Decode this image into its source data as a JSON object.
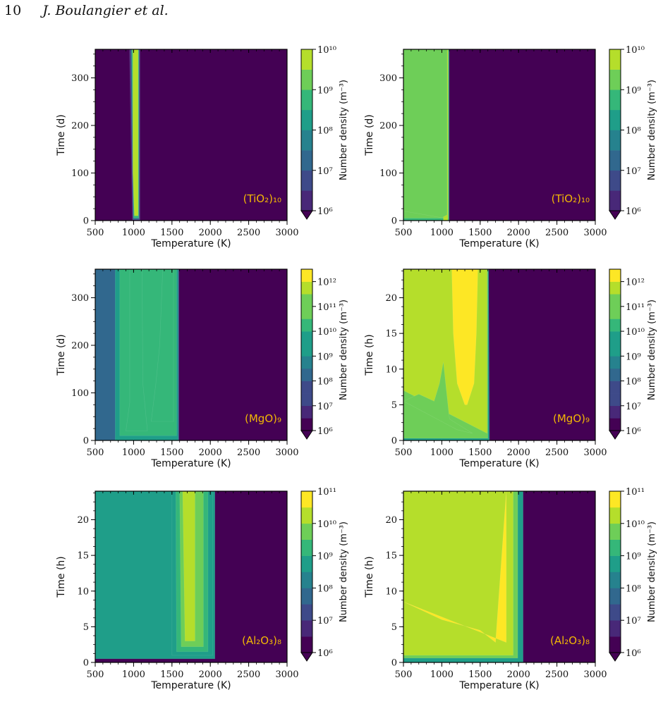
{
  "page_header": {
    "page_number": "10",
    "running_author": "J. Boulangier et al."
  },
  "colors": {
    "viridis": [
      "#440154",
      "#482878",
      "#3e4a89",
      "#31688e",
      "#26828e",
      "#1f9e89",
      "#35b779",
      "#6ece58",
      "#b5de2b",
      "#fde725"
    ],
    "species_label": "#f2b705",
    "axis": "#000000"
  },
  "chart_data": [
    {
      "id": "tio2-days-a",
      "type": "contour",
      "species": "(TiO₂)₁₀",
      "xlabel": "Temperature (K)",
      "ylabel": "Time (d)",
      "xlim": [
        500,
        3000
      ],
      "ylim": [
        0,
        360
      ],
      "xticks": [
        500,
        1000,
        1500,
        2000,
        2500,
        3000
      ],
      "yticks": [
        0,
        100,
        200,
        300
      ],
      "colorbar": {
        "label": "Number density (m⁻³)",
        "log_min": 6,
        "log_max": 10,
        "ticks": [
          6,
          7,
          8,
          9,
          10
        ],
        "tick_labels": [
          "10⁶",
          "10⁷",
          "10⁸",
          "10⁹",
          "10¹⁰"
        ],
        "extend": "min"
      },
      "regions": [
        {
          "level": 6.5,
          "x_left": [
            [
              0,
              985
            ],
            [
              360,
              945
            ]
          ],
          "x_right": [
            [
              0,
              1085
            ],
            [
              360,
              1085
            ]
          ]
        },
        {
          "level": 7.5,
          "x_left": [
            [
              2,
              992
            ],
            [
              360,
              960
            ]
          ],
          "x_right": [
            [
              2,
              1075
            ],
            [
              360,
              1075
            ]
          ]
        },
        {
          "level": 8.5,
          "x_left": [
            [
              5,
              1000
            ],
            [
              360,
              975
            ]
          ],
          "x_right": [
            [
              5,
              1068
            ],
            [
              360,
              1068
            ]
          ]
        },
        {
          "level": 9.5,
          "x_left": [
            [
              10,
              1010
            ],
            [
              100,
              990
            ],
            [
              360,
              990
            ]
          ],
          "x_right": [
            [
              10,
              1060
            ],
            [
              360,
              1060
            ]
          ]
        }
      ]
    },
    {
      "id": "tio2-days-b",
      "type": "contour",
      "species": "(TiO₂)₁₀",
      "xlabel": "Temperature (K)",
      "ylabel": "Time (d)",
      "xlim": [
        500,
        3000
      ],
      "ylim": [
        0,
        360
      ],
      "xticks": [
        500,
        1000,
        1500,
        2000,
        2500,
        3000
      ],
      "yticks": [
        0,
        100,
        200,
        300
      ],
      "colorbar": {
        "label": "Number density (m⁻³)",
        "log_min": 6,
        "log_max": 10,
        "ticks": [
          6,
          7,
          8,
          9,
          10
        ],
        "tick_labels": [
          "10⁶",
          "10⁷",
          "10⁸",
          "10⁹",
          "10¹⁰"
        ],
        "extend": "min"
      },
      "regions": [
        {
          "level": 8.5,
          "x_left": [
            [
              0,
              500
            ],
            [
              360,
              500
            ]
          ],
          "x_right": [
            [
              0,
              1095
            ],
            [
              360,
              1095
            ]
          ]
        },
        {
          "level": 9.3,
          "x_left": [
            [
              5,
              500
            ],
            [
              360,
              500
            ]
          ],
          "x_right": [
            [
              5,
              1085
            ],
            [
              360,
              1085
            ]
          ]
        },
        {
          "level": 9.5,
          "x_left": [
            [
              0,
              1020
            ],
            [
              360,
              1020
            ]
          ],
          "x_right": [
            [
              0,
              1080
            ],
            [
              360,
              1080
            ]
          ]
        },
        {
          "level": 8.9,
          "x_left": [
            [
              20,
              500
            ],
            [
              360,
              500
            ]
          ],
          "x_right": [
            [
              6,
              1000
            ],
            [
              12,
              1070
            ],
            [
              360,
              1070
            ]
          ]
        }
      ]
    },
    {
      "id": "mgo-days",
      "type": "contour",
      "species": "(MgO)₉",
      "xlabel": "Temperature (K)",
      "ylabel": "Time (d)",
      "xlim": [
        500,
        3000
      ],
      "ylim": [
        0,
        360
      ],
      "xticks": [
        500,
        1000,
        1500,
        2000,
        2500,
        3000
      ],
      "yticks": [
        0,
        100,
        200,
        300
      ],
      "colorbar": {
        "label": "Number density (m⁻³)",
        "log_min": 6,
        "log_max": 12.5,
        "ticks": [
          6,
          7,
          8,
          9,
          10,
          11,
          12
        ],
        "tick_labels": [
          "10⁶",
          "10⁷",
          "10⁸",
          "10⁹",
          "10¹⁰",
          "10¹¹",
          "10¹²"
        ],
        "extend": "min"
      },
      "regions": [
        {
          "level": 8.5,
          "x_left": [
            [
              0,
              500
            ],
            [
              360,
              500
            ]
          ],
          "x_right": [
            [
              0,
              1590
            ],
            [
              360,
              1590
            ]
          ]
        },
        {
          "level": 9.5,
          "x_left": [
            [
              0,
              760
            ],
            [
              360,
              760
            ]
          ],
          "x_right": [
            [
              0,
              1580
            ],
            [
              360,
              1580
            ]
          ]
        },
        {
          "level": 10.0,
          "x_left": [
            [
              10,
              820
            ],
            [
              360,
              820
            ]
          ],
          "x_right": [
            [
              10,
              1560
            ],
            [
              360,
              1560
            ]
          ]
        },
        {
          "level": 10.5,
          "x_left": [
            [
              20,
              900
            ],
            [
              80,
              950
            ],
            [
              360,
              950
            ]
          ],
          "x_right": [
            [
              20,
              1180
            ],
            [
              120,
              1120
            ],
            [
              360,
              1110
            ]
          ]
        },
        {
          "level": 10.5,
          "x_left": [
            [
              40,
              1230
            ],
            [
              120,
              1290
            ],
            [
              200,
              1340
            ],
            [
              360,
              1380
            ]
          ],
          "x_right": [
            [
              40,
              1520
            ],
            [
              360,
              1520
            ]
          ]
        }
      ]
    },
    {
      "id": "mgo-hours",
      "type": "contour",
      "species": "(MgO)₉",
      "xlabel": "Temperature (K)",
      "ylabel": "Time (h)",
      "xlim": [
        500,
        3000
      ],
      "ylim": [
        0,
        24
      ],
      "xticks": [
        500,
        1000,
        1500,
        2000,
        2500,
        3000
      ],
      "yticks": [
        0,
        5,
        10,
        15,
        20
      ],
      "colorbar": {
        "label": "Number density (m⁻³)",
        "log_min": 6,
        "log_max": 12.5,
        "ticks": [
          6,
          7,
          8,
          9,
          10,
          11,
          12
        ],
        "tick_labels": [
          "10⁶",
          "10⁷",
          "10⁸",
          "10⁹",
          "10¹⁰",
          "10¹¹",
          "10¹²"
        ],
        "extend": "min"
      },
      "regions": [
        {
          "level": 9.5,
          "x_left": [
            [
              0,
              500
            ],
            [
              24,
              500
            ]
          ],
          "x_right": [
            [
              0,
              1620
            ],
            [
              24,
              1610
            ]
          ]
        },
        {
          "level": 11.0,
          "x_left": [
            [
              0.3,
              500
            ],
            [
              24,
              500
            ]
          ],
          "x_right": [
            [
              0.3,
              1600
            ],
            [
              24,
              1600
            ]
          ]
        },
        {
          "level": 11.5,
          "x_left": [
            [
              7,
              500
            ],
            [
              24,
              500
            ]
          ],
          "x_right": [
            [
              1,
              1590
            ],
            [
              24,
              1590
            ]
          ]
        },
        {
          "level": 10.8,
          "x_left": [
            [
              5.5,
              500
            ],
            [
              6.5,
              700
            ],
            [
              5.5,
              900
            ],
            [
              8,
              970
            ],
            [
              11,
              1020
            ],
            [
              7,
              1060
            ],
            [
              3,
              1100
            ]
          ],
          "x_right": [
            [
              1.5,
              1200
            ],
            [
              1,
              1400
            ]
          ]
        },
        {
          "level": 12.3,
          "x_left": [
            [
              5,
              1300
            ],
            [
              8,
              1200
            ],
            [
              15,
              1150
            ],
            [
              24,
              1130
            ]
          ],
          "x_right": [
            [
              5,
              1330
            ],
            [
              8,
              1420
            ],
            [
              15,
              1450
            ],
            [
              24,
              1470
            ]
          ]
        }
      ]
    },
    {
      "id": "al2o3-hours-a",
      "type": "contour",
      "species": "(Al₂O₃)₈",
      "xlabel": "Temperature (K)",
      "ylabel": "Time (h)",
      "xlim": [
        500,
        3000
      ],
      "ylim": [
        0,
        24
      ],
      "xticks": [
        500,
        1000,
        1500,
        2000,
        2500,
        3000
      ],
      "yticks": [
        0,
        5,
        10,
        15,
        20
      ],
      "colorbar": {
        "label": "Number density (m⁻³)",
        "log_min": 6,
        "log_max": 11,
        "ticks": [
          6,
          7,
          8,
          9,
          10,
          11
        ],
        "tick_labels": [
          "10⁶",
          "10⁷",
          "10⁸",
          "10⁹",
          "10¹⁰",
          "10¹¹"
        ],
        "extend": "min"
      },
      "regions": [
        {
          "level": 8.5,
          "x_left": [
            [
              0.5,
              500
            ],
            [
              24,
              500
            ]
          ],
          "x_right": [
            [
              0.5,
              2060
            ],
            [
              24,
              2060
            ]
          ]
        },
        {
          "level": 9.0,
          "x_left": [
            [
              1,
              1500
            ],
            [
              24,
              1500
            ]
          ],
          "x_right": [
            [
              1,
              2030
            ],
            [
              24,
              2030
            ]
          ]
        },
        {
          "level": 9.5,
          "x_left": [
            [
              1.5,
              1560
            ],
            [
              24,
              1550
            ]
          ],
          "x_right": [
            [
              1.5,
              1970
            ],
            [
              24,
              1970
            ]
          ]
        },
        {
          "level": 10.0,
          "x_left": [
            [
              2.2,
              1620
            ],
            [
              24,
              1600
            ]
          ],
          "x_right": [
            [
              2.2,
              1910
            ],
            [
              24,
              1910
            ]
          ]
        },
        {
          "level": 10.5,
          "x_left": [
            [
              3,
              1670
            ],
            [
              24,
              1640
            ]
          ],
          "x_right": [
            [
              3,
              1800
            ],
            [
              24,
              1800
            ]
          ]
        }
      ]
    },
    {
      "id": "al2o3-hours-b",
      "type": "contour",
      "species": "(Al₂O₃)₈",
      "xlabel": "Temperature (K)",
      "ylabel": "Time (h)",
      "xlim": [
        500,
        3000
      ],
      "ylim": [
        0,
        24
      ],
      "xticks": [
        500,
        1000,
        1500,
        2000,
        2500,
        3000
      ],
      "yticks": [
        0,
        5,
        10,
        15,
        20
      ],
      "colorbar": {
        "label": "Number density (m⁻³)",
        "log_min": 6,
        "log_max": 11,
        "ticks": [
          6,
          7,
          8,
          9,
          10,
          11
        ],
        "tick_labels": [
          "10⁶",
          "10⁷",
          "10⁸",
          "10⁹",
          "10¹⁰",
          "10¹¹"
        ],
        "extend": "min"
      },
      "regions": [
        {
          "level": 9.0,
          "x_left": [
            [
              0,
              500
            ],
            [
              24,
              500
            ]
          ],
          "x_right": [
            [
              0,
              2060
            ],
            [
              24,
              2060
            ]
          ]
        },
        {
          "level": 9.8,
          "x_left": [
            [
              0.6,
              500
            ],
            [
              24,
              500
            ]
          ],
          "x_right": [
            [
              0.6,
              1990
            ],
            [
              24,
              1990
            ]
          ]
        },
        {
          "level": 10.2,
          "x_left": [
            [
              1,
              500
            ],
            [
              24,
              500
            ]
          ],
          "x_right": [
            [
              1,
              1930
            ],
            [
              24,
              1930
            ]
          ]
        },
        {
          "level": 10.8,
          "x_left": [
            [
              8.5,
              500
            ],
            [
              6,
              1000
            ],
            [
              4.5,
              1500
            ],
            [
              2.8,
              1700
            ]
          ],
          "x_right": [
            [
              2.8,
              1840
            ],
            [
              24,
              1840
            ]
          ]
        }
      ]
    }
  ]
}
